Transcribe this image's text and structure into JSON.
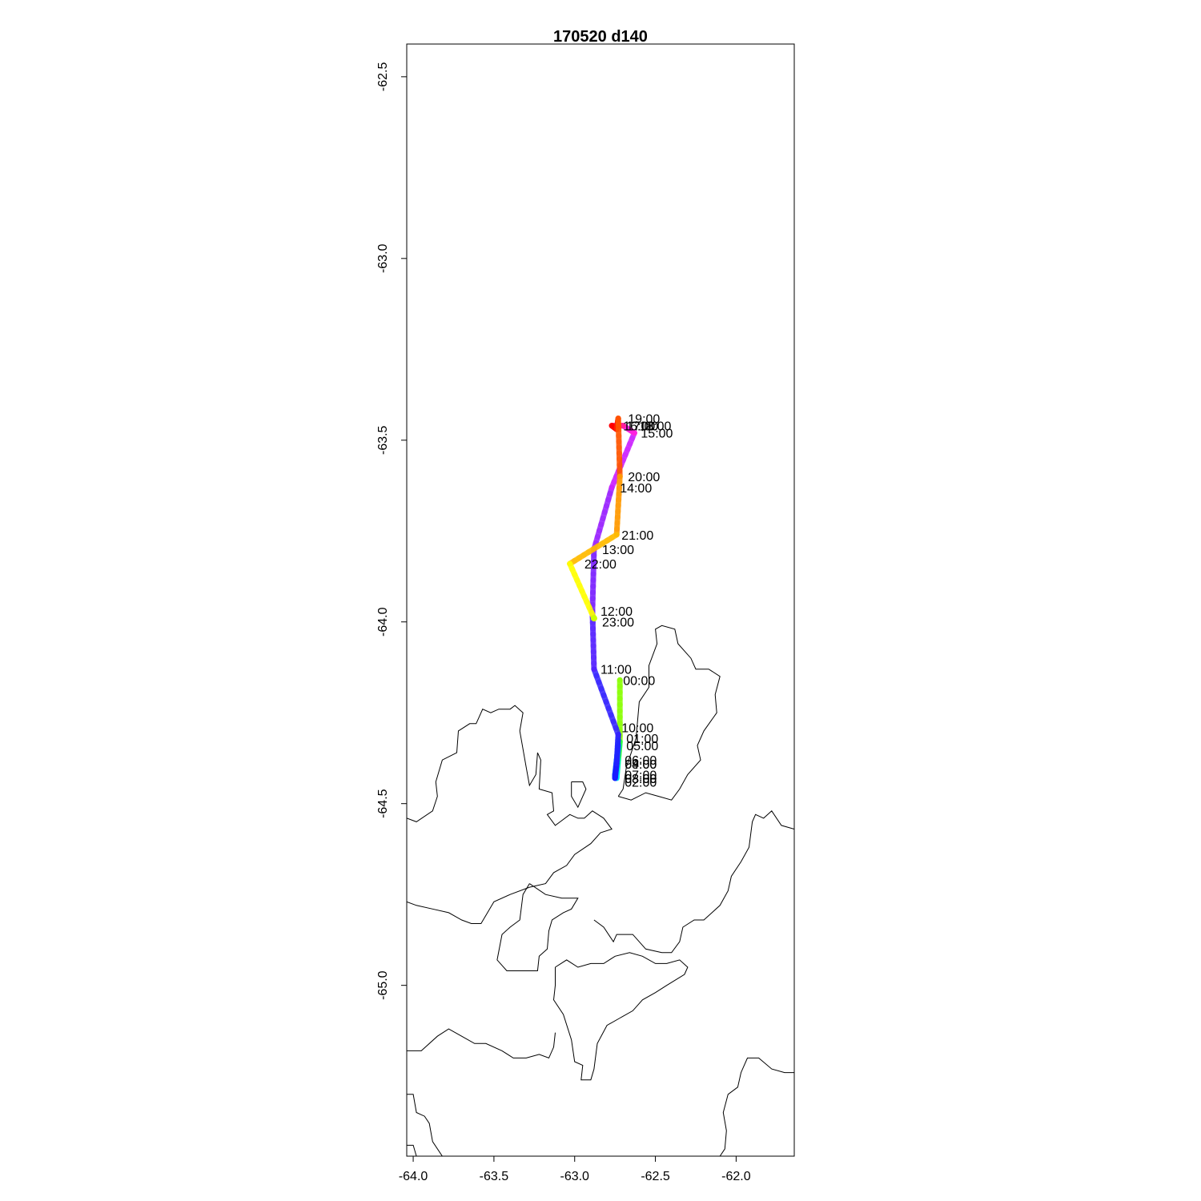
{
  "title": "170520   d140",
  "chart_data": {
    "type": "map-track",
    "title": "170520   d140",
    "xlim": [
      -64.04,
      -61.64
    ],
    "ylim": [
      -65.47,
      -62.41
    ],
    "x_ticks": [
      -64.0,
      -63.5,
      -63.0,
      -62.5,
      -62.0
    ],
    "x_tick_labels": [
      "-64.0",
      "-63.5",
      "-63.0",
      "-62.5",
      "-62.0"
    ],
    "y_ticks": [
      -62.5,
      -63.0,
      -63.5,
      -64.0,
      -64.5,
      -65.0
    ],
    "y_tick_labels": [
      "-62.5",
      "-63.0",
      "-63.5",
      "-64.0",
      "-64.5",
      "-65.0"
    ],
    "track": [
      {
        "t": "00:00",
        "x": -62.72,
        "y": -64.16,
        "color": "#88ff00"
      },
      {
        "t": "01:00",
        "x": -62.72,
        "y": -64.33,
        "color": "#22ff44"
      },
      {
        "t": "02:00",
        "x": -62.73,
        "y": -64.38,
        "color": "#00ffaa"
      },
      {
        "t": "03:00",
        "x": -62.74,
        "y": -64.43,
        "color": "#00ddff"
      },
      {
        "t": "04:00",
        "x": -62.74,
        "y": -64.39,
        "color": "#00bbff"
      },
      {
        "t": "05:00",
        "x": -62.73,
        "y": -64.34,
        "color": "#0088ff"
      },
      {
        "t": "06:00",
        "x": -62.74,
        "y": -64.38,
        "color": "#0066ff"
      },
      {
        "t": "07:00",
        "x": -62.75,
        "y": -64.42,
        "color": "#0044ff"
      },
      {
        "t": "08:00",
        "x": -62.75,
        "y": -64.43,
        "color": "#1a1aff"
      },
      {
        "t": "09:00",
        "x": -62.74,
        "y": -64.39,
        "color": "#2222ff"
      },
      {
        "t": "10:00",
        "x": -62.73,
        "y": -64.31,
        "color": "#3322ff"
      },
      {
        "t": "11:00",
        "x": -62.88,
        "y": -64.13,
        "color": "#5522ff"
      },
      {
        "t": "12:00",
        "x": -62.89,
        "y": -63.97,
        "color": "#7a22ff"
      },
      {
        "t": "13:00",
        "x": -62.88,
        "y": -63.8,
        "color": "#9922ff"
      },
      {
        "t": "14:00",
        "x": -62.77,
        "y": -63.63,
        "color": "#cc22ff"
      },
      {
        "t": "15:00",
        "x": -62.63,
        "y": -63.48,
        "color": "#ff22dd"
      },
      {
        "t": "16:00",
        "x": -62.7,
        "y": -63.46,
        "color": "#ff2299"
      },
      {
        "t": "17:00",
        "x": -62.77,
        "y": -63.46,
        "color": "#ff0000"
      },
      {
        "t": "18:00",
        "x": -62.74,
        "y": -63.47,
        "color": "#ff2200"
      },
      {
        "t": "19:00",
        "x": -62.73,
        "y": -63.44,
        "color": "#ff5500"
      },
      {
        "t": "20:00",
        "x": -62.72,
        "y": -63.6,
        "color": "#ff9900"
      },
      {
        "t": "21:00",
        "x": -62.74,
        "y": -63.76,
        "color": "#ffbb00"
      },
      {
        "t": "22:00",
        "x": -63.03,
        "y": -63.84,
        "color": "#ffff00"
      },
      {
        "t": "23:00",
        "x": -62.88,
        "y": -63.99,
        "color": "#ccff00"
      }
    ],
    "time_labels": [
      {
        "text": "19:00",
        "x": -62.67,
        "y": -63.44
      },
      {
        "text": "17:00",
        "x": -62.68,
        "y": -63.46
      },
      {
        "text": "16:00",
        "x": -62.7,
        "y": -63.46
      },
      {
        "text": "18:00",
        "x": -62.6,
        "y": -63.46
      },
      {
        "text": "15:00",
        "x": -62.59,
        "y": -63.48
      },
      {
        "text": "20:00",
        "x": -62.67,
        "y": -63.6
      },
      {
        "text": "14:00",
        "x": -62.72,
        "y": -63.63
      },
      {
        "text": "21:00",
        "x": -62.71,
        "y": -63.76
      },
      {
        "text": "13:00",
        "x": -62.83,
        "y": -63.8
      },
      {
        "text": "22:00",
        "x": -62.94,
        "y": -63.84
      },
      {
        "text": "12:00",
        "x": -62.84,
        "y": -63.97
      },
      {
        "text": "23:00",
        "x": -62.83,
        "y": -64.0
      },
      {
        "text": "11:00",
        "x": -62.84,
        "y": -64.13
      },
      {
        "text": "00:00",
        "x": -62.7,
        "y": -64.16
      },
      {
        "text": "10:00",
        "x": -62.71,
        "y": -64.29
      },
      {
        "text": "01:00",
        "x": -62.68,
        "y": -64.32
      },
      {
        "text": "05:00",
        "x": -62.68,
        "y": -64.34
      },
      {
        "text": "06:00",
        "x": -62.69,
        "y": -64.38
      },
      {
        "text": "04:00",
        "x": -62.69,
        "y": -64.39
      },
      {
        "text": "09:00",
        "x": -62.69,
        "y": -64.39
      },
      {
        "text": "07:00",
        "x": -62.69,
        "y": -64.42
      },
      {
        "text": "08:00",
        "x": -62.69,
        "y": -64.43
      },
      {
        "text": "03:00",
        "x": -62.69,
        "y": -64.43
      },
      {
        "text": "02:00",
        "x": -62.69,
        "y": -64.44
      }
    ],
    "coastlines": [
      [
        [
          -64.04,
          -64.54
        ],
        [
          -63.98,
          -64.55
        ],
        [
          -63.88,
          -64.52
        ],
        [
          -63.85,
          -64.48
        ],
        [
          -63.86,
          -64.44
        ],
        [
          -63.82,
          -64.38
        ],
        [
          -63.73,
          -64.36
        ],
        [
          -63.72,
          -64.3
        ],
        [
          -63.65,
          -64.28
        ],
        [
          -63.61,
          -64.28
        ],
        [
          -63.57,
          -64.24
        ],
        [
          -63.52,
          -64.25
        ],
        [
          -63.47,
          -64.24
        ],
        [
          -63.4,
          -64.24
        ],
        [
          -63.37,
          -64.23
        ],
        [
          -63.32,
          -64.25
        ],
        [
          -63.34,
          -64.3
        ],
        [
          -63.3,
          -64.4
        ],
        [
          -63.28,
          -64.45
        ],
        [
          -63.24,
          -64.42
        ],
        [
          -63.23,
          -64.36
        ],
        [
          -63.21,
          -64.38
        ],
        [
          -63.22,
          -64.46
        ],
        [
          -63.14,
          -64.47
        ],
        [
          -63.13,
          -64.52
        ],
        [
          -63.17,
          -64.53
        ],
        [
          -63.12,
          -64.56
        ],
        [
          -63.09,
          -64.55
        ],
        [
          -63.03,
          -64.53
        ],
        [
          -62.98,
          -64.54
        ],
        [
          -62.94,
          -64.54
        ],
        [
          -62.89,
          -64.52
        ],
        [
          -62.82,
          -64.54
        ],
        [
          -62.77,
          -64.57
        ],
        [
          -62.84,
          -64.58
        ],
        [
          -62.9,
          -64.61
        ],
        [
          -63.0,
          -64.64
        ],
        [
          -63.05,
          -64.67
        ],
        [
          -63.13,
          -64.69
        ],
        [
          -63.18,
          -64.72
        ],
        [
          -63.28,
          -64.73
        ],
        [
          -63.4,
          -64.75
        ],
        [
          -63.5,
          -64.77
        ],
        [
          -63.58,
          -64.83
        ],
        [
          -63.64,
          -64.83
        ],
        [
          -63.7,
          -64.82
        ],
        [
          -63.78,
          -64.8
        ],
        [
          -63.88,
          -64.79
        ],
        [
          -63.98,
          -64.78
        ],
        [
          -64.04,
          -64.77
        ]
      ],
      [
        [
          -63.02,
          -64.44
        ],
        [
          -62.95,
          -64.44
        ],
        [
          -62.93,
          -64.46
        ],
        [
          -62.98,
          -64.51
        ],
        [
          -63.02,
          -64.48
        ],
        [
          -63.02,
          -64.44
        ]
      ],
      [
        [
          -62.73,
          -64.48
        ],
        [
          -62.7,
          -64.46
        ],
        [
          -62.68,
          -64.4
        ],
        [
          -62.62,
          -64.32
        ],
        [
          -62.6,
          -64.22
        ],
        [
          -62.54,
          -64.18
        ],
        [
          -62.54,
          -64.12
        ],
        [
          -62.49,
          -64.06
        ],
        [
          -62.5,
          -64.02
        ],
        [
          -62.46,
          -64.01
        ],
        [
          -62.38,
          -64.02
        ],
        [
          -62.36,
          -64.06
        ],
        [
          -62.28,
          -64.1
        ],
        [
          -62.25,
          -64.13
        ],
        [
          -62.17,
          -64.13
        ],
        [
          -62.1,
          -64.15
        ],
        [
          -62.13,
          -64.2
        ],
        [
          -62.12,
          -64.25
        ],
        [
          -62.2,
          -64.3
        ],
        [
          -62.24,
          -64.34
        ],
        [
          -62.22,
          -64.38
        ],
        [
          -62.3,
          -64.42
        ],
        [
          -62.35,
          -64.46
        ],
        [
          -62.4,
          -64.49
        ],
        [
          -62.48,
          -64.48
        ],
        [
          -62.56,
          -64.47
        ],
        [
          -62.65,
          -64.49
        ],
        [
          -62.73,
          -64.48
        ]
      ],
      [
        [
          -63.28,
          -64.72
        ],
        [
          -63.32,
          -64.75
        ],
        [
          -63.34,
          -64.82
        ],
        [
          -63.4,
          -64.84
        ],
        [
          -63.45,
          -64.86
        ],
        [
          -63.48,
          -64.93
        ],
        [
          -63.42,
          -64.96
        ],
        [
          -63.3,
          -64.96
        ],
        [
          -63.23,
          -64.96
        ],
        [
          -63.22,
          -64.92
        ],
        [
          -63.17,
          -64.9
        ],
        [
          -63.16,
          -64.85
        ],
        [
          -63.14,
          -64.82
        ],
        [
          -63.07,
          -64.8
        ],
        [
          -63.02,
          -64.79
        ],
        [
          -62.98,
          -64.76
        ],
        [
          -63.08,
          -64.76
        ],
        [
          -63.18,
          -64.75
        ],
        [
          -63.28,
          -64.72
        ]
      ],
      [
        [
          -62.88,
          -64.82
        ],
        [
          -62.82,
          -64.84
        ],
        [
          -62.76,
          -64.88
        ],
        [
          -62.74,
          -64.86
        ],
        [
          -62.64,
          -64.86
        ],
        [
          -62.56,
          -64.9
        ],
        [
          -62.46,
          -64.91
        ],
        [
          -62.4,
          -64.91
        ],
        [
          -62.35,
          -64.88
        ],
        [
          -62.33,
          -64.84
        ],
        [
          -62.26,
          -64.82
        ],
        [
          -62.2,
          -64.82
        ],
        [
          -62.15,
          -64.8
        ],
        [
          -62.1,
          -64.78
        ],
        [
          -62.05,
          -64.74
        ],
        [
          -62.03,
          -64.7
        ],
        [
          -61.97,
          -64.66
        ],
        [
          -61.92,
          -64.62
        ],
        [
          -61.9,
          -64.55
        ],
        [
          -61.88,
          -64.53
        ],
        [
          -61.83,
          -64.54
        ],
        [
          -61.78,
          -64.52
        ],
        [
          -61.72,
          -64.56
        ],
        [
          -61.64,
          -64.57
        ]
      ],
      [
        [
          -63.12,
          -64.95
        ],
        [
          -63.12,
          -65.0
        ],
        [
          -63.13,
          -65.04
        ],
        [
          -63.07,
          -65.08
        ],
        [
          -63.02,
          -65.15
        ],
        [
          -63.0,
          -65.21
        ],
        [
          -62.95,
          -65.22
        ],
        [
          -62.96,
          -65.26
        ],
        [
          -62.9,
          -65.26
        ],
        [
          -62.88,
          -65.23
        ],
        [
          -62.86,
          -65.16
        ],
        [
          -62.8,
          -65.11
        ],
        [
          -62.72,
          -65.09
        ],
        [
          -62.64,
          -65.07
        ],
        [
          -62.58,
          -65.04
        ],
        [
          -62.5,
          -65.02
        ],
        [
          -62.43,
          -65.0
        ],
        [
          -62.32,
          -64.97
        ],
        [
          -62.3,
          -64.95
        ],
        [
          -62.35,
          -64.93
        ],
        [
          -62.43,
          -64.94
        ],
        [
          -62.5,
          -64.94
        ],
        [
          -62.58,
          -64.92
        ],
        [
          -62.66,
          -64.91
        ],
        [
          -62.75,
          -64.92
        ],
        [
          -62.82,
          -64.94
        ],
        [
          -62.9,
          -64.94
        ],
        [
          -62.98,
          -64.95
        ],
        [
          -63.05,
          -64.93
        ],
        [
          -63.12,
          -64.95
        ]
      ],
      [
        [
          -64.04,
          -65.18
        ],
        [
          -63.95,
          -65.18
        ],
        [
          -63.85,
          -65.14
        ],
        [
          -63.78,
          -65.12
        ],
        [
          -63.7,
          -65.14
        ],
        [
          -63.62,
          -65.16
        ],
        [
          -63.55,
          -65.16
        ],
        [
          -63.45,
          -65.18
        ],
        [
          -63.38,
          -65.2
        ],
        [
          -63.3,
          -65.2
        ],
        [
          -63.22,
          -65.19
        ],
        [
          -63.16,
          -65.2
        ],
        [
          -63.13,
          -65.17
        ],
        [
          -63.12,
          -65.13
        ]
      ],
      [
        [
          -64.04,
          -65.3
        ],
        [
          -64.0,
          -65.3
        ],
        [
          -63.98,
          -65.35
        ],
        [
          -63.93,
          -65.36
        ],
        [
          -63.9,
          -65.38
        ],
        [
          -63.88,
          -65.43
        ],
        [
          -63.82,
          -65.47
        ]
      ],
      [
        [
          -61.64,
          -65.24
        ],
        [
          -61.7,
          -65.24
        ],
        [
          -61.78,
          -65.23
        ],
        [
          -61.86,
          -65.2
        ],
        [
          -61.93,
          -65.2
        ],
        [
          -61.97,
          -65.24
        ],
        [
          -61.99,
          -65.28
        ],
        [
          -62.05,
          -65.3
        ],
        [
          -62.08,
          -65.35
        ],
        [
          -62.06,
          -65.4
        ],
        [
          -62.07,
          -65.45
        ],
        [
          -62.1,
          -65.47
        ]
      ],
      [
        [
          -64.04,
          -65.44
        ],
        [
          -64.0,
          -65.44
        ],
        [
          -63.98,
          -65.47
        ]
      ]
    ]
  }
}
